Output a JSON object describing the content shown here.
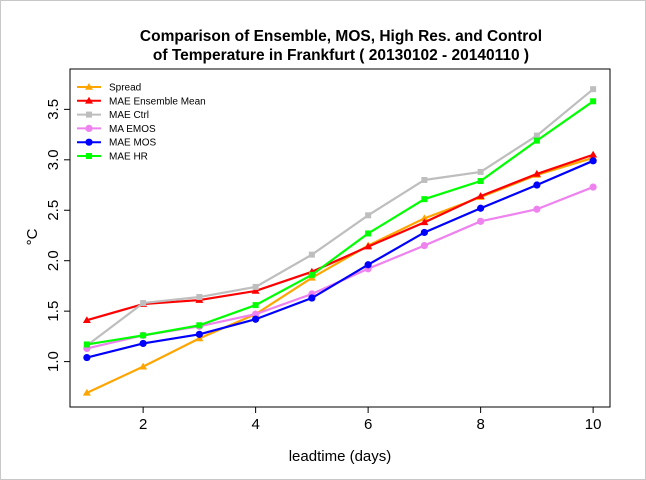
{
  "chart_data": {
    "type": "line",
    "title": "Comparison of Ensemble, MOS, High Res. and Control",
    "subtitle": "of  Temperature in Frankfurt ( 20130102 - 20140110 )",
    "xlabel": "leadtime (days)",
    "ylabel": "°C",
    "xlim": [
      0.7,
      10.3
    ],
    "ylim": [
      0.55,
      3.9
    ],
    "x_ticks": [
      2,
      4,
      6,
      8,
      10
    ],
    "y_ticks": [
      1.0,
      1.5,
      2.0,
      2.5,
      3.0,
      3.5
    ],
    "x_tick_labels": [
      "2",
      "4",
      "6",
      "8",
      "10"
    ],
    "y_tick_labels": [
      "1.0",
      "1.5",
      "2.0",
      "2.5",
      "3.0",
      "3.5"
    ],
    "grid": false,
    "legend_position": "top-left",
    "x": [
      1,
      2,
      3,
      4,
      5,
      6,
      7,
      8,
      9,
      10
    ],
    "series": [
      {
        "name": "Spread",
        "color": "#ffa500",
        "marker": "triangle",
        "values": [
          0.69,
          0.95,
          1.23,
          1.47,
          1.83,
          2.15,
          2.42,
          2.63,
          2.85,
          3.02
        ]
      },
      {
        "name": "MAE Ensemble Mean",
        "color": "#ff0000",
        "marker": "triangle",
        "values": [
          1.41,
          1.57,
          1.61,
          1.7,
          1.89,
          2.14,
          2.38,
          2.64,
          2.86,
          3.05
        ]
      },
      {
        "name": "MAE Ctrl",
        "color": "#bebebe",
        "marker": "square",
        "values": [
          1.16,
          1.58,
          1.64,
          1.74,
          2.06,
          2.45,
          2.8,
          2.88,
          3.24,
          3.7
        ]
      },
      {
        "name": "MA EMOS",
        "color": "#ee82ee",
        "marker": "circle",
        "values": [
          1.13,
          1.26,
          1.35,
          1.47,
          1.67,
          1.92,
          2.15,
          2.39,
          2.51,
          2.73
        ]
      },
      {
        "name": "MAE MOS",
        "color": "#0000ff",
        "marker": "circle",
        "values": [
          1.04,
          1.18,
          1.27,
          1.42,
          1.63,
          1.96,
          2.28,
          2.52,
          2.75,
          2.99
        ]
      },
      {
        "name": "MAE HR",
        "color": "#00ff00",
        "marker": "square",
        "values": [
          1.17,
          1.26,
          1.36,
          1.56,
          1.86,
          2.27,
          2.61,
          2.79,
          3.19,
          3.58
        ]
      }
    ]
  }
}
